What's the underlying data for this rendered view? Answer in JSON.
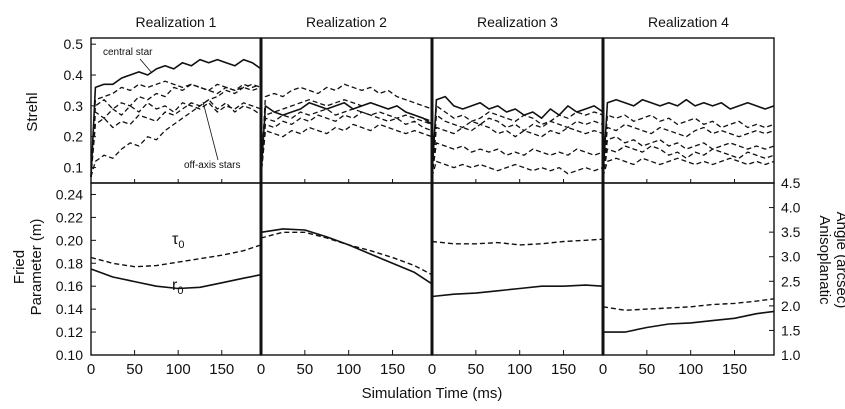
{
  "chart_data": {
    "type": "line",
    "xlabel": "Simulation Time (ms)",
    "xlim": [
      0,
      195
    ],
    "xticks": [
      0,
      50,
      100,
      150
    ],
    "xtick_labels": [
      "0",
      "50",
      "100",
      "150"
    ],
    "panels": [
      {
        "title": "Realization 1"
      },
      {
        "title": "Realization 2"
      },
      {
        "title": "Realization 3"
      },
      {
        "title": "Realization 4"
      }
    ],
    "strehl": {
      "ylabel": "Strehl",
      "ylim": [
        0.05,
        0.52
      ],
      "yticks": [
        0.1,
        0.2,
        0.3,
        0.4,
        0.5
      ],
      "ytick_labels": [
        "0.1",
        "0.2",
        "0.3",
        "0.4",
        "0.5"
      ],
      "annotations": {
        "central": "central star",
        "offaxis": "off-axis stars"
      },
      "x": [
        0,
        5,
        15,
        25,
        35,
        45,
        55,
        65,
        75,
        85,
        95,
        105,
        115,
        125,
        135,
        145,
        155,
        165,
        175,
        185,
        195
      ],
      "central": [
        [
          0.07,
          0.36,
          0.37,
          0.37,
          0.39,
          0.4,
          0.41,
          0.4,
          0.42,
          0.43,
          0.42,
          0.44,
          0.43,
          0.45,
          0.44,
          0.45,
          0.44,
          0.43,
          0.45,
          0.44,
          0.42
        ],
        [
          0.07,
          0.3,
          0.28,
          0.27,
          0.28,
          0.29,
          0.31,
          0.3,
          0.29,
          0.3,
          0.31,
          0.29,
          0.3,
          0.31,
          0.3,
          0.29,
          0.3,
          0.28,
          0.27,
          0.26,
          0.24
        ],
        [
          0.07,
          0.32,
          0.33,
          0.3,
          0.29,
          0.3,
          0.31,
          0.29,
          0.3,
          0.28,
          0.29,
          0.27,
          0.28,
          0.26,
          0.29,
          0.27,
          0.3,
          0.28,
          0.29,
          0.3,
          0.28
        ],
        [
          0.07,
          0.31,
          0.32,
          0.31,
          0.3,
          0.32,
          0.31,
          0.3,
          0.31,
          0.3,
          0.32,
          0.3,
          0.31,
          0.3,
          0.31,
          0.29,
          0.3,
          0.31,
          0.3,
          0.29,
          0.3
        ]
      ],
      "offaxis": [
        [
          [
            0.07,
            0.32,
            0.33,
            0.34,
            0.36,
            0.35,
            0.37,
            0.36,
            0.37,
            0.38,
            0.37,
            0.36,
            0.37,
            0.36,
            0.35,
            0.37,
            0.36,
            0.35,
            0.36,
            0.35,
            0.36
          ],
          [
            0.07,
            0.3,
            0.32,
            0.29,
            0.31,
            0.3,
            0.33,
            0.32,
            0.34,
            0.33,
            0.36,
            0.35,
            0.37,
            0.36,
            0.35,
            0.34,
            0.36,
            0.35,
            0.37,
            0.36,
            0.37
          ],
          [
            0.07,
            0.28,
            0.26,
            0.29,
            0.27,
            0.3,
            0.28,
            0.31,
            0.29,
            0.3,
            0.28,
            0.31,
            0.3,
            0.29,
            0.31,
            0.28,
            0.3,
            0.29,
            0.31,
            0.3,
            0.29
          ],
          [
            0.07,
            0.24,
            0.26,
            0.23,
            0.25,
            0.24,
            0.27,
            0.26,
            0.25,
            0.28,
            0.27,
            0.29,
            0.31,
            0.3,
            0.32,
            0.29,
            0.31,
            0.28,
            0.3,
            0.29,
            0.27
          ],
          [
            0.07,
            0.12,
            0.14,
            0.13,
            0.16,
            0.18,
            0.17,
            0.2,
            0.19,
            0.22,
            0.24,
            0.26,
            0.28,
            0.3,
            0.32,
            0.33,
            0.35,
            0.34,
            0.36,
            0.37,
            0.36
          ]
        ],
        [
          [
            0.07,
            0.33,
            0.34,
            0.33,
            0.35,
            0.36,
            0.35,
            0.34,
            0.36,
            0.35,
            0.37,
            0.36,
            0.35,
            0.36,
            0.34,
            0.35,
            0.33,
            0.32,
            0.31,
            0.3,
            0.29
          ],
          [
            0.07,
            0.27,
            0.28,
            0.29,
            0.3,
            0.31,
            0.32,
            0.31,
            0.3,
            0.31,
            0.32,
            0.31,
            0.3,
            0.31,
            0.3,
            0.29,
            0.3,
            0.28,
            0.27,
            0.26,
            0.25
          ],
          [
            0.07,
            0.26,
            0.25,
            0.27,
            0.26,
            0.28,
            0.27,
            0.28,
            0.29,
            0.27,
            0.28,
            0.29,
            0.28,
            0.27,
            0.28,
            0.27,
            0.26,
            0.27,
            0.26,
            0.25,
            0.24
          ],
          [
            0.07,
            0.24,
            0.23,
            0.25,
            0.24,
            0.26,
            0.25,
            0.27,
            0.26,
            0.25,
            0.27,
            0.26,
            0.28,
            0.27,
            0.26,
            0.25,
            0.26,
            0.24,
            0.25,
            0.23,
            0.22
          ],
          [
            0.07,
            0.22,
            0.21,
            0.2,
            0.22,
            0.21,
            0.23,
            0.22,
            0.21,
            0.23,
            0.22,
            0.24,
            0.23,
            0.22,
            0.24,
            0.23,
            0.22,
            0.21,
            0.22,
            0.21,
            0.2
          ]
        ],
        [
          [
            0.07,
            0.3,
            0.28,
            0.26,
            0.27,
            0.25,
            0.26,
            0.28,
            0.27,
            0.26,
            0.25,
            0.27,
            0.26,
            0.24,
            0.25,
            0.27,
            0.26,
            0.28,
            0.27,
            0.28,
            0.27
          ],
          [
            0.07,
            0.27,
            0.25,
            0.24,
            0.23,
            0.25,
            0.24,
            0.26,
            0.25,
            0.23,
            0.24,
            0.22,
            0.24,
            0.23,
            0.25,
            0.24,
            0.23,
            0.25,
            0.24,
            0.25,
            0.24
          ],
          [
            0.07,
            0.23,
            0.22,
            0.21,
            0.23,
            0.22,
            0.24,
            0.23,
            0.21,
            0.22,
            0.2,
            0.22,
            0.21,
            0.2,
            0.22,
            0.21,
            0.23,
            0.22,
            0.21,
            0.22,
            0.21
          ],
          [
            0.07,
            0.18,
            0.17,
            0.16,
            0.17,
            0.15,
            0.16,
            0.15,
            0.16,
            0.14,
            0.15,
            0.14,
            0.16,
            0.15,
            0.14,
            0.15,
            0.14,
            0.16,
            0.15,
            0.14,
            0.15
          ],
          [
            0.07,
            0.12,
            0.11,
            0.1,
            0.11,
            0.1,
            0.11,
            0.1,
            0.09,
            0.1,
            0.11,
            0.1,
            0.09,
            0.1,
            0.09,
            0.1,
            0.08,
            0.09,
            0.1,
            0.09,
            0.1
          ]
        ],
        [
          [
            0.07,
            0.27,
            0.26,
            0.27,
            0.25,
            0.26,
            0.27,
            0.25,
            0.26,
            0.24,
            0.25,
            0.26,
            0.24,
            0.25,
            0.23,
            0.24,
            0.25,
            0.23,
            0.24,
            0.23,
            0.24
          ],
          [
            0.07,
            0.23,
            0.22,
            0.24,
            0.23,
            0.22,
            0.21,
            0.23,
            0.22,
            0.21,
            0.2,
            0.22,
            0.23,
            0.21,
            0.22,
            0.21,
            0.2,
            0.21,
            0.22,
            0.21,
            0.22
          ],
          [
            0.07,
            0.19,
            0.2,
            0.18,
            0.19,
            0.17,
            0.18,
            0.19,
            0.17,
            0.18,
            0.16,
            0.17,
            0.18,
            0.16,
            0.17,
            0.18,
            0.17,
            0.16,
            0.17,
            0.16,
            0.17
          ],
          [
            0.07,
            0.16,
            0.15,
            0.17,
            0.16,
            0.15,
            0.17,
            0.16,
            0.14,
            0.15,
            0.13,
            0.15,
            0.14,
            0.16,
            0.15,
            0.14,
            0.13,
            0.15,
            0.14,
            0.13,
            0.14
          ],
          [
            0.07,
            0.12,
            0.13,
            0.12,
            0.11,
            0.13,
            0.12,
            0.11,
            0.12,
            0.13,
            0.12,
            0.11,
            0.12,
            0.11,
            0.12,
            0.13,
            0.12,
            0.11,
            0.12,
            0.11,
            0.12
          ]
        ]
      ]
    },
    "fried": {
      "ylabel": "Fried Parameter (m)",
      "ylim": [
        0.1,
        0.25
      ],
      "yticks": [
        0.1,
        0.12,
        0.14,
        0.16,
        0.18,
        0.2,
        0.22,
        0.24
      ],
      "ytick_labels": [
        "0.10",
        "0.12",
        "0.14",
        "0.16",
        "0.18",
        "0.20",
        "0.22",
        "0.24"
      ],
      "right_ylabel": "Anisoplanatic Angle (arcsec)",
      "right_ylim": [
        1.0,
        4.5
      ],
      "right_yticks": [
        1.0,
        1.5,
        2.0,
        2.5,
        3.0,
        3.5,
        4.0,
        4.5
      ],
      "right_ytick_labels": [
        "1.0",
        "1.5",
        "2.0",
        "2.5",
        "3.0",
        "3.5",
        "4.0",
        "4.5"
      ],
      "labels": {
        "tau": "τ",
        "tau_sub": "0",
        "r": "r",
        "r_sub": "0"
      },
      "x": [
        0,
        25,
        50,
        75,
        100,
        125,
        150,
        175,
        195
      ],
      "r0": [
        [
          0.175,
          0.168,
          0.164,
          0.16,
          0.158,
          0.159,
          0.163,
          0.167,
          0.17
        ],
        [
          0.207,
          0.21,
          0.209,
          0.203,
          0.196,
          0.188,
          0.18,
          0.172,
          0.162
        ],
        [
          0.151,
          0.153,
          0.154,
          0.156,
          0.158,
          0.16,
          0.16,
          0.161,
          0.16
        ],
        [
          0.12,
          0.12,
          0.124,
          0.127,
          0.128,
          0.13,
          0.132,
          0.136,
          0.138
        ]
      ],
      "tau0": [
        [
          0.185,
          0.18,
          0.177,
          0.178,
          0.181,
          0.184,
          0.187,
          0.191,
          0.196
        ],
        [
          0.202,
          0.207,
          0.207,
          0.202,
          0.196,
          0.191,
          0.185,
          0.178,
          0.17
        ],
        [
          0.199,
          0.197,
          0.197,
          0.198,
          0.196,
          0.197,
          0.199,
          0.2,
          0.201
        ],
        [
          0.142,
          0.139,
          0.14,
          0.141,
          0.142,
          0.144,
          0.145,
          0.147,
          0.149
        ]
      ]
    }
  }
}
